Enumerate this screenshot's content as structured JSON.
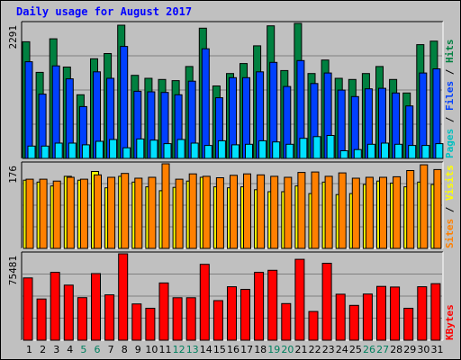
{
  "chart_data": [
    {
      "type": "bar",
      "title": "Daily usage for August 2017",
      "ymax_label": "2291",
      "ylim": [
        0,
        2291
      ],
      "right_label": {
        "parts": [
          {
            "text": "Pages",
            "color": "#00c0c0"
          },
          {
            "text": " / ",
            "color": "#000000"
          },
          {
            "text": "Files",
            "color": "#0040ff"
          },
          {
            "text": " / ",
            "color": "#000000"
          },
          {
            "text": "Hits",
            "color": "#008040"
          }
        ]
      },
      "categories": [
        "1",
        "2",
        "3",
        "4",
        "5",
        "6",
        "7",
        "8",
        "9",
        "10",
        "11",
        "12",
        "13",
        "14",
        "15",
        "16",
        "17",
        "18",
        "19",
        "20",
        "21",
        "22",
        "23",
        "24",
        "25",
        "26",
        "27",
        "28",
        "29",
        "30",
        "31"
      ],
      "series": [
        {
          "name": "Hits",
          "color": "#008040",
          "values": [
            1980,
            1460,
            2030,
            1550,
            1080,
            1690,
            1780,
            2260,
            1410,
            1360,
            1340,
            1320,
            1560,
            2210,
            1230,
            1440,
            1610,
            1910,
            2250,
            1490,
            2300,
            1440,
            1670,
            1360,
            1340,
            1440,
            1560,
            1340,
            1110,
            1930,
            1990
          ]
        },
        {
          "name": "Files",
          "color": "#0040ff",
          "values": [
            1640,
            1090,
            1570,
            1350,
            880,
            1470,
            1360,
            1900,
            1140,
            1130,
            1120,
            1080,
            1310,
            1860,
            1030,
            1370,
            1370,
            1470,
            1630,
            1220,
            1660,
            1270,
            1450,
            1160,
            1050,
            1180,
            1190,
            1110,
            890,
            1450,
            1520
          ]
        },
        {
          "name": "Pages",
          "color": "#00e0ff",
          "values": [
            210,
            210,
            260,
            260,
            230,
            290,
            320,
            180,
            330,
            310,
            250,
            320,
            260,
            220,
            300,
            230,
            240,
            300,
            280,
            240,
            340,
            370,
            390,
            130,
            150,
            240,
            260,
            240,
            220,
            220,
            250
          ]
        }
      ]
    },
    {
      "type": "bar",
      "ymax_label": "176",
      "ylim": [
        0,
        176
      ],
      "right_label": {
        "parts": [
          {
            "text": "Sites",
            "color": "#ff8000"
          },
          {
            "text": " / ",
            "color": "#000000"
          },
          {
            "text": "Visits",
            "color": "#ffff00"
          }
        ]
      },
      "categories": [
        "1",
        "2",
        "3",
        "4",
        "5",
        "6",
        "7",
        "8",
        "9",
        "10",
        "11",
        "12",
        "13",
        "14",
        "15",
        "16",
        "17",
        "18",
        "19",
        "20",
        "21",
        "22",
        "23",
        "24",
        "25",
        "26",
        "27",
        "28",
        "29",
        "30",
        "31"
      ],
      "series": [
        {
          "name": "Visits",
          "color": "#ffff00",
          "values": [
            142,
            138,
            130,
            150,
            142,
            160,
            126,
            150,
            138,
            128,
            120,
            127,
            140,
            148,
            128,
            126,
            128,
            122,
            118,
            118,
            130,
            114,
            138,
            112,
            114,
            133,
            140,
            136,
            128,
            138,
            133
          ]
        },
        {
          "name": "Sites",
          "color": "#ff8000",
          "values": [
            144,
            144,
            140,
            148,
            144,
            153,
            148,
            156,
            146,
            148,
            176,
            144,
            155,
            150,
            147,
            152,
            155,
            153,
            150,
            148,
            158,
            159,
            150,
            157,
            146,
            148,
            148,
            149,
            162,
            174,
            164
          ]
        }
      ]
    },
    {
      "type": "bar",
      "ymax_label": "75481",
      "ylim": [
        0,
        75481
      ],
      "right_label": {
        "parts": [
          {
            "text": "KBytes",
            "color": "#ff0000"
          }
        ]
      },
      "categories": [
        "1",
        "2",
        "3",
        "4",
        "5",
        "6",
        "7",
        "8",
        "9",
        "10",
        "11",
        "12",
        "13",
        "14",
        "15",
        "16",
        "17",
        "18",
        "19",
        "20",
        "21",
        "22",
        "23",
        "24",
        "25",
        "26",
        "27",
        "28",
        "29",
        "30",
        "31"
      ],
      "series": [
        {
          "name": "KBytes",
          "color": "#ff0000",
          "values": [
            54400,
            36000,
            59300,
            48100,
            37200,
            58200,
            39600,
            75700,
            31700,
            27900,
            50000,
            37100,
            37100,
            66300,
            34600,
            46700,
            44400,
            59300,
            61100,
            32000,
            70700,
            25100,
            67200,
            40200,
            30400,
            40300,
            47000,
            46500,
            27900,
            46700,
            49400
          ]
        }
      ]
    }
  ],
  "x_axis": {
    "labels": [
      "1",
      "2",
      "3",
      "4",
      "5",
      "6",
      "7",
      "8",
      "9",
      "10",
      "11",
      "12",
      "13",
      "14",
      "15",
      "16",
      "17",
      "18",
      "19",
      "20",
      "21",
      "22",
      "23",
      "24",
      "25",
      "26",
      "27",
      "28",
      "29",
      "30",
      "31"
    ],
    "weekend_days": [
      "5",
      "6",
      "12",
      "13",
      "19",
      "20",
      "26",
      "27"
    ],
    "weekday_color": "#000000",
    "weekend_color": "#00805f"
  }
}
